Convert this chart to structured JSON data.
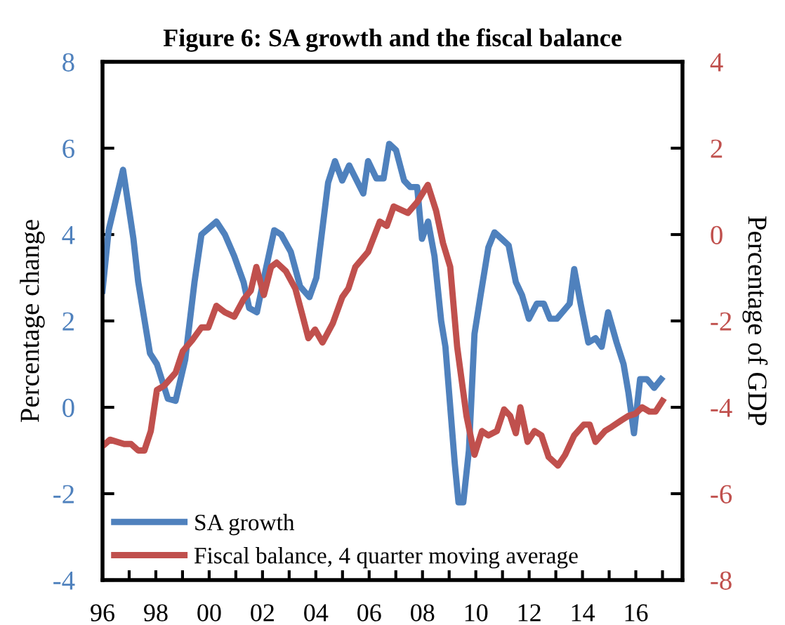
{
  "chart_data": {
    "type": "line",
    "title": "Figure 6: SA growth and the fiscal balance",
    "ylabel": "Percentage change",
    "y2label": "Percentage of GDP",
    "xlim": [
      1996,
      2017.75
    ],
    "xticks": [
      {
        "value": 1996,
        "label": "96"
      },
      {
        "value": 1997,
        "label": null
      },
      {
        "value": 1998,
        "label": "98"
      },
      {
        "value": 1999,
        "label": null
      },
      {
        "value": 2000,
        "label": "00"
      },
      {
        "value": 2001,
        "label": null
      },
      {
        "value": 2002,
        "label": "02"
      },
      {
        "value": 2003,
        "label": null
      },
      {
        "value": 2004,
        "label": "04"
      },
      {
        "value": 2005,
        "label": null
      },
      {
        "value": 2006,
        "label": "06"
      },
      {
        "value": 2007,
        "label": null
      },
      {
        "value": 2008,
        "label": "08"
      },
      {
        "value": 2009,
        "label": null
      },
      {
        "value": 2010,
        "label": "10"
      },
      {
        "value": 2011,
        "label": null
      },
      {
        "value": 2012,
        "label": "12"
      },
      {
        "value": 2013,
        "label": null
      },
      {
        "value": 2014,
        "label": "14"
      },
      {
        "value": 2015,
        "label": null
      },
      {
        "value": 2016,
        "label": "16"
      },
      {
        "value": 2017,
        "label": null
      }
    ],
    "ylim": [
      -4,
      8
    ],
    "yticks": [
      -4,
      -2,
      0,
      2,
      4,
      6,
      8
    ],
    "y2lim": [
      -8,
      4
    ],
    "y2ticks": [
      -8,
      -6,
      -4,
      -2,
      0,
      2,
      4
    ],
    "grid": false,
    "legend": "bottom left",
    "marker": "none",
    "line_style": "solid",
    "series": [
      {
        "name": "SA growth",
        "color": "#4f81bd",
        "x": [
          1996.0,
          1996.23,
          1996.77,
          1997.16,
          1997.34,
          1997.78,
          1998.04,
          1998.45,
          1998.74,
          1999.1,
          1999.45,
          1999.71,
          2000.27,
          2000.59,
          2000.94,
          2001.29,
          2001.5,
          2001.79,
          2002.09,
          2002.44,
          2002.7,
          2003.06,
          2003.41,
          2003.76,
          2004.02,
          2004.46,
          2004.72,
          2004.99,
          2005.25,
          2005.78,
          2005.96,
          2006.27,
          2006.54,
          2006.75,
          2007.01,
          2007.31,
          2007.54,
          2007.8,
          2007.98,
          2008.21,
          2008.45,
          2008.7,
          2008.86,
          2009.21,
          2009.35,
          2009.53,
          2009.74,
          2009.95,
          2010.18,
          2010.47,
          2010.7,
          2010.97,
          2011.23,
          2011.5,
          2011.73,
          2011.99,
          2012.29,
          2012.55,
          2012.78,
          2013.04,
          2013.52,
          2013.69,
          2013.93,
          2014.22,
          2014.49,
          2014.72,
          2014.96,
          2015.28,
          2015.54,
          2015.72,
          2015.93,
          2016.16,
          2016.42,
          2016.69,
          2016.95
        ],
        "values": [
          2.7,
          4.1,
          5.5,
          3.9,
          2.9,
          1.25,
          1.0,
          0.2,
          0.15,
          1.1,
          2.9,
          4.0,
          4.3,
          4.0,
          3.5,
          2.9,
          2.3,
          2.2,
          3.1,
          4.1,
          4.0,
          3.6,
          2.8,
          2.55,
          3.0,
          5.2,
          5.7,
          5.25,
          5.6,
          4.95,
          5.7,
          5.3,
          5.3,
          6.1,
          5.95,
          5.25,
          5.1,
          5.1,
          3.9,
          4.3,
          3.5,
          2.0,
          1.4,
          -1.3,
          -2.2,
          -2.2,
          -1.0,
          1.7,
          2.6,
          3.7,
          4.05,
          3.9,
          3.75,
          2.9,
          2.6,
          2.05,
          2.4,
          2.4,
          2.05,
          2.05,
          2.4,
          3.2,
          2.4,
          1.5,
          1.6,
          1.4,
          2.2,
          1.5,
          1.0,
          0.35,
          -0.6,
          0.65,
          0.65,
          0.45,
          0.65
        ]
      },
      {
        "name": "Fiscal balance, 4 quarter moving average",
        "color": "#c0504d",
        "axis": "y2",
        "x": [
          1996.0,
          1996.28,
          1996.81,
          1997.07,
          1997.34,
          1997.57,
          1997.81,
          1998.04,
          1998.31,
          1998.74,
          1999.01,
          1999.36,
          1999.71,
          1999.97,
          2000.27,
          2000.59,
          2000.94,
          2001.29,
          2001.56,
          2001.77,
          2002.05,
          2002.32,
          2002.53,
          2002.88,
          2003.23,
          2003.49,
          2003.72,
          2003.97,
          2004.25,
          2004.64,
          2004.99,
          2005.22,
          2005.48,
          2005.96,
          2006.4,
          2006.66,
          2006.92,
          2007.45,
          2007.8,
          2008.2,
          2008.51,
          2008.77,
          2009.04,
          2009.3,
          2009.65,
          2009.95,
          2010.23,
          2010.47,
          2010.79,
          2011.06,
          2011.29,
          2011.5,
          2011.67,
          2011.94,
          2012.2,
          2012.46,
          2012.73,
          2013.08,
          2013.35,
          2013.69,
          2014.05,
          2014.27,
          2014.49,
          2014.84,
          2015.1,
          2015.46,
          2015.72,
          2015.98,
          2016.24,
          2016.51,
          2016.74,
          2017.0
        ],
        "values": [
          -4.9,
          -4.75,
          -4.85,
          -4.85,
          -5.0,
          -5.0,
          -4.55,
          -3.6,
          -3.5,
          -3.2,
          -2.7,
          -2.45,
          -2.15,
          -2.15,
          -1.65,
          -1.8,
          -1.9,
          -1.5,
          -1.3,
          -0.75,
          -1.4,
          -0.75,
          -0.65,
          -0.85,
          -1.25,
          -1.85,
          -2.4,
          -2.2,
          -2.5,
          -2.05,
          -1.45,
          -1.25,
          -0.75,
          -0.4,
          0.3,
          0.2,
          0.65,
          0.5,
          0.75,
          1.15,
          0.55,
          -0.2,
          -0.75,
          -2.6,
          -4.2,
          -5.1,
          -4.55,
          -4.65,
          -4.55,
          -4.05,
          -4.2,
          -4.6,
          -4.0,
          -4.8,
          -4.55,
          -4.65,
          -5.15,
          -5.35,
          -5.1,
          -4.65,
          -4.4,
          -4.4,
          -4.8,
          -4.55,
          -4.45,
          -4.3,
          -4.2,
          -4.15,
          -4.0,
          -4.1,
          -4.1,
          -3.85
        ]
      }
    ]
  }
}
